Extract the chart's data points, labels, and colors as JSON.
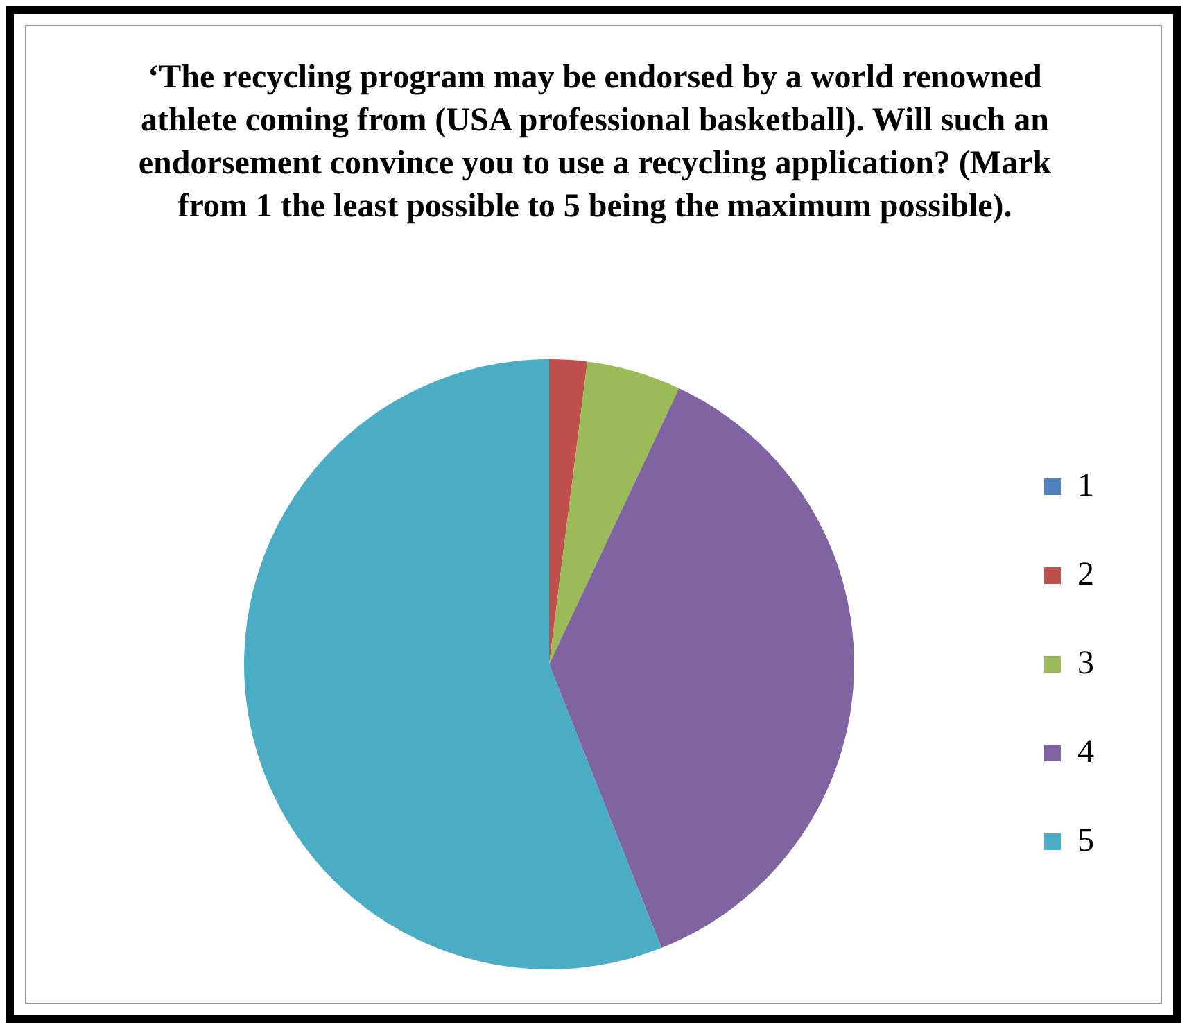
{
  "chart_data": {
    "type": "pie",
    "title": "‘The recycling program may be endorsed by a world renowned athlete coming from (USA professional basketball). Will such an endorsement convince you to use a recycling application? (Mark from 1 the least possible to 5 being the maximum possible).",
    "categories": [
      "1",
      "2",
      "3",
      "4",
      "5"
    ],
    "values": [
      0,
      2,
      5,
      37,
      56
    ],
    "colors": [
      "#4f81bd",
      "#c0504d",
      "#9bbb59",
      "#8064a2",
      "#4bacc6"
    ],
    "legend": "right"
  }
}
